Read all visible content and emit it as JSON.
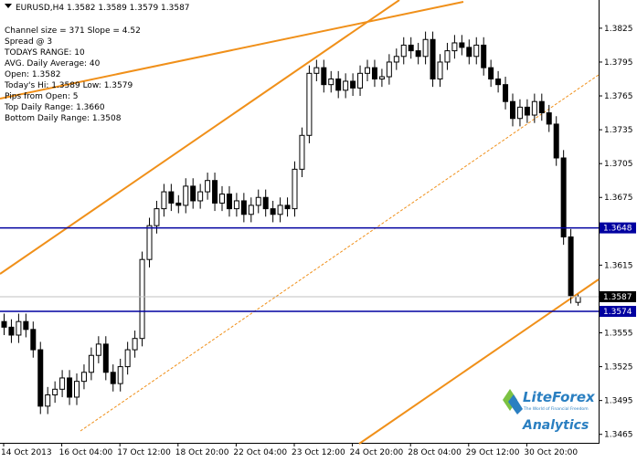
{
  "chart_data": {
    "type": "candlestick",
    "title": "EURUSD,H4  1.3582 1.3589 1.3579 1.3587",
    "annotations": [
      "Channel size = 371 Slope = 4.52",
      "Spread @ 3",
      "TODAYS RANGE: 10",
      "AVG. Daily Average: 40",
      "Open: 1.3582",
      "Today's Hi: 1.3589  Low: 1.3579",
      "Pips from Open: 5",
      "Top Daily Range: 1.3660",
      "Bottom Daily Range: 1.3508"
    ],
    "logo": "LiteForex",
    "logo_tagline": "The World of Financial Freedom",
    "logo_sub": "Analytics",
    "categories": [
      "14 Oct 2013",
      null,
      null,
      null,
      null,
      null,
      null,
      null,
      "16 Oct 04:00",
      null,
      null,
      null,
      null,
      null,
      null,
      null,
      "17 Oct 12:00",
      null,
      null,
      null,
      null,
      null,
      null,
      null,
      "18 Oct 20:00",
      null,
      null,
      null,
      null,
      null,
      null,
      null,
      "22 Oct 04:00",
      null,
      null,
      null,
      null,
      null,
      null,
      null,
      "23 Oct 12:00",
      null,
      null,
      null,
      null,
      null,
      null,
      null,
      "24 Oct 20:00",
      null,
      null,
      null,
      null,
      null,
      null,
      null,
      "28 Oct 04:00",
      null,
      null,
      null,
      null,
      null,
      null,
      null,
      "29 Oct 12:00",
      null,
      null,
      null,
      null,
      null,
      null,
      null,
      "30 Oct 20:00",
      null,
      null,
      null,
      null,
      null,
      null,
      null
    ],
    "open": [
      1.3565,
      1.356,
      1.3553,
      1.3565,
      1.3558,
      1.354,
      1.349,
      1.35,
      1.3505,
      1.3515,
      1.3498,
      1.3512,
      1.352,
      1.3535,
      1.3545,
      1.352,
      1.351,
      1.3525,
      1.354,
      1.355,
      1.362,
      1.365,
      1.3665,
      1.368,
      1.367,
      1.3668,
      1.3685,
      1.3672,
      1.368,
      1.369,
      1.367,
      1.3678,
      1.3665,
      1.3672,
      1.366,
      1.3668,
      1.3675,
      1.3665,
      1.366,
      1.3668,
      1.3665,
      1.37,
      1.373,
      1.3785,
      1.379,
      1.3775,
      1.378,
      1.377,
      1.3778,
      1.3772,
      1.3785,
      1.379,
      1.378,
      1.3782,
      1.3795,
      1.38,
      1.381,
      1.3805,
      1.38,
      1.3815,
      1.378,
      1.3795,
      1.3805,
      1.3812,
      1.3808,
      1.38,
      1.381,
      1.379,
      1.378,
      1.3775,
      1.376,
      1.3745,
      1.3755,
      1.3748,
      1.376,
      1.375,
      1.374,
      1.371,
      1.364,
      1.3582
    ],
    "high": [
      1.3572,
      1.3567,
      1.3572,
      1.3572,
      1.3565,
      1.3547,
      1.3507,
      1.3512,
      1.3522,
      1.3522,
      1.3519,
      1.3527,
      1.3542,
      1.3552,
      1.3552,
      1.3527,
      1.3532,
      1.3547,
      1.3557,
      1.3627,
      1.3657,
      1.3672,
      1.3687,
      1.3687,
      1.3677,
      1.3692,
      1.3692,
      1.3687,
      1.3697,
      1.3697,
      1.3685,
      1.3685,
      1.3679,
      1.3679,
      1.3675,
      1.3682,
      1.3682,
      1.3672,
      1.3675,
      1.3675,
      1.3707,
      1.3737,
      1.3792,
      1.3797,
      1.3797,
      1.3787,
      1.3787,
      1.3785,
      1.3785,
      1.3792,
      1.3797,
      1.3797,
      1.3789,
      1.3802,
      1.3807,
      1.3817,
      1.3817,
      1.3812,
      1.3822,
      1.3822,
      1.3802,
      1.3812,
      1.3819,
      1.3819,
      1.3815,
      1.3817,
      1.3817,
      1.3797,
      1.3787,
      1.3782,
      1.3767,
      1.3762,
      1.3762,
      1.3767,
      1.3767,
      1.3757,
      1.3747,
      1.3717,
      1.3647,
      1.3589
    ],
    "low": [
      1.3553,
      1.3546,
      1.3546,
      1.3551,
      1.3533,
      1.3483,
      1.3483,
      1.3493,
      1.3498,
      1.3491,
      1.3491,
      1.3505,
      1.3513,
      1.3528,
      1.3513,
      1.3503,
      1.3503,
      1.3518,
      1.3533,
      1.3543,
      1.3613,
      1.3643,
      1.3658,
      1.3663,
      1.3661,
      1.3661,
      1.3665,
      1.3665,
      1.3673,
      1.3663,
      1.3663,
      1.3658,
      1.3658,
      1.3653,
      1.3653,
      1.3661,
      1.3658,
      1.3653,
      1.3653,
      1.3658,
      1.3658,
      1.3693,
      1.3723,
      1.3778,
      1.3768,
      1.3768,
      1.3763,
      1.3763,
      1.3765,
      1.3765,
      1.3778,
      1.3773,
      1.3773,
      1.3775,
      1.3788,
      1.3793,
      1.3798,
      1.3793,
      1.3793,
      1.3773,
      1.3773,
      1.3788,
      1.3798,
      1.3801,
      1.3793,
      1.3793,
      1.3783,
      1.3773,
      1.3768,
      1.3753,
      1.3738,
      1.3738,
      1.3741,
      1.3741,
      1.3743,
      1.3733,
      1.3703,
      1.3633,
      1.3581,
      1.3579
    ],
    "close": [
      1.356,
      1.3553,
      1.3565,
      1.3558,
      1.354,
      1.349,
      1.35,
      1.3505,
      1.3515,
      1.3498,
      1.3512,
      1.352,
      1.3535,
      1.3545,
      1.352,
      1.351,
      1.3525,
      1.354,
      1.355,
      1.362,
      1.365,
      1.3665,
      1.368,
      1.367,
      1.3668,
      1.3685,
      1.3672,
      1.368,
      1.369,
      1.367,
      1.3678,
      1.3665,
      1.3672,
      1.366,
      1.3668,
      1.3675,
      1.3665,
      1.366,
      1.3668,
      1.3665,
      1.37,
      1.373,
      1.3785,
      1.379,
      1.3775,
      1.378,
      1.377,
      1.3778,
      1.3772,
      1.3785,
      1.379,
      1.378,
      1.3782,
      1.3795,
      1.38,
      1.381,
      1.3805,
      1.38,
      1.3815,
      1.378,
      1.3795,
      1.3805,
      1.3812,
      1.3808,
      1.38,
      1.381,
      1.379,
      1.378,
      1.3775,
      1.376,
      1.3745,
      1.3755,
      1.3748,
      1.376,
      1.375,
      1.374,
      1.371,
      1.364,
      1.3588,
      1.3587
    ],
    "ylim": [
      1.34575,
      1.385
    ],
    "yticks": [
      1.3825,
      1.3795,
      1.3765,
      1.3735,
      1.3705,
      1.3675,
      1.3615,
      1.3555,
      1.3525,
      1.3495,
      1.3465
    ],
    "hlines": [
      1.3648,
      1.3574
    ],
    "hline_color": "#0000a0",
    "current_price": 1.3587,
    "up_color": "#ffffff",
    "down_color": "#000000"
  }
}
